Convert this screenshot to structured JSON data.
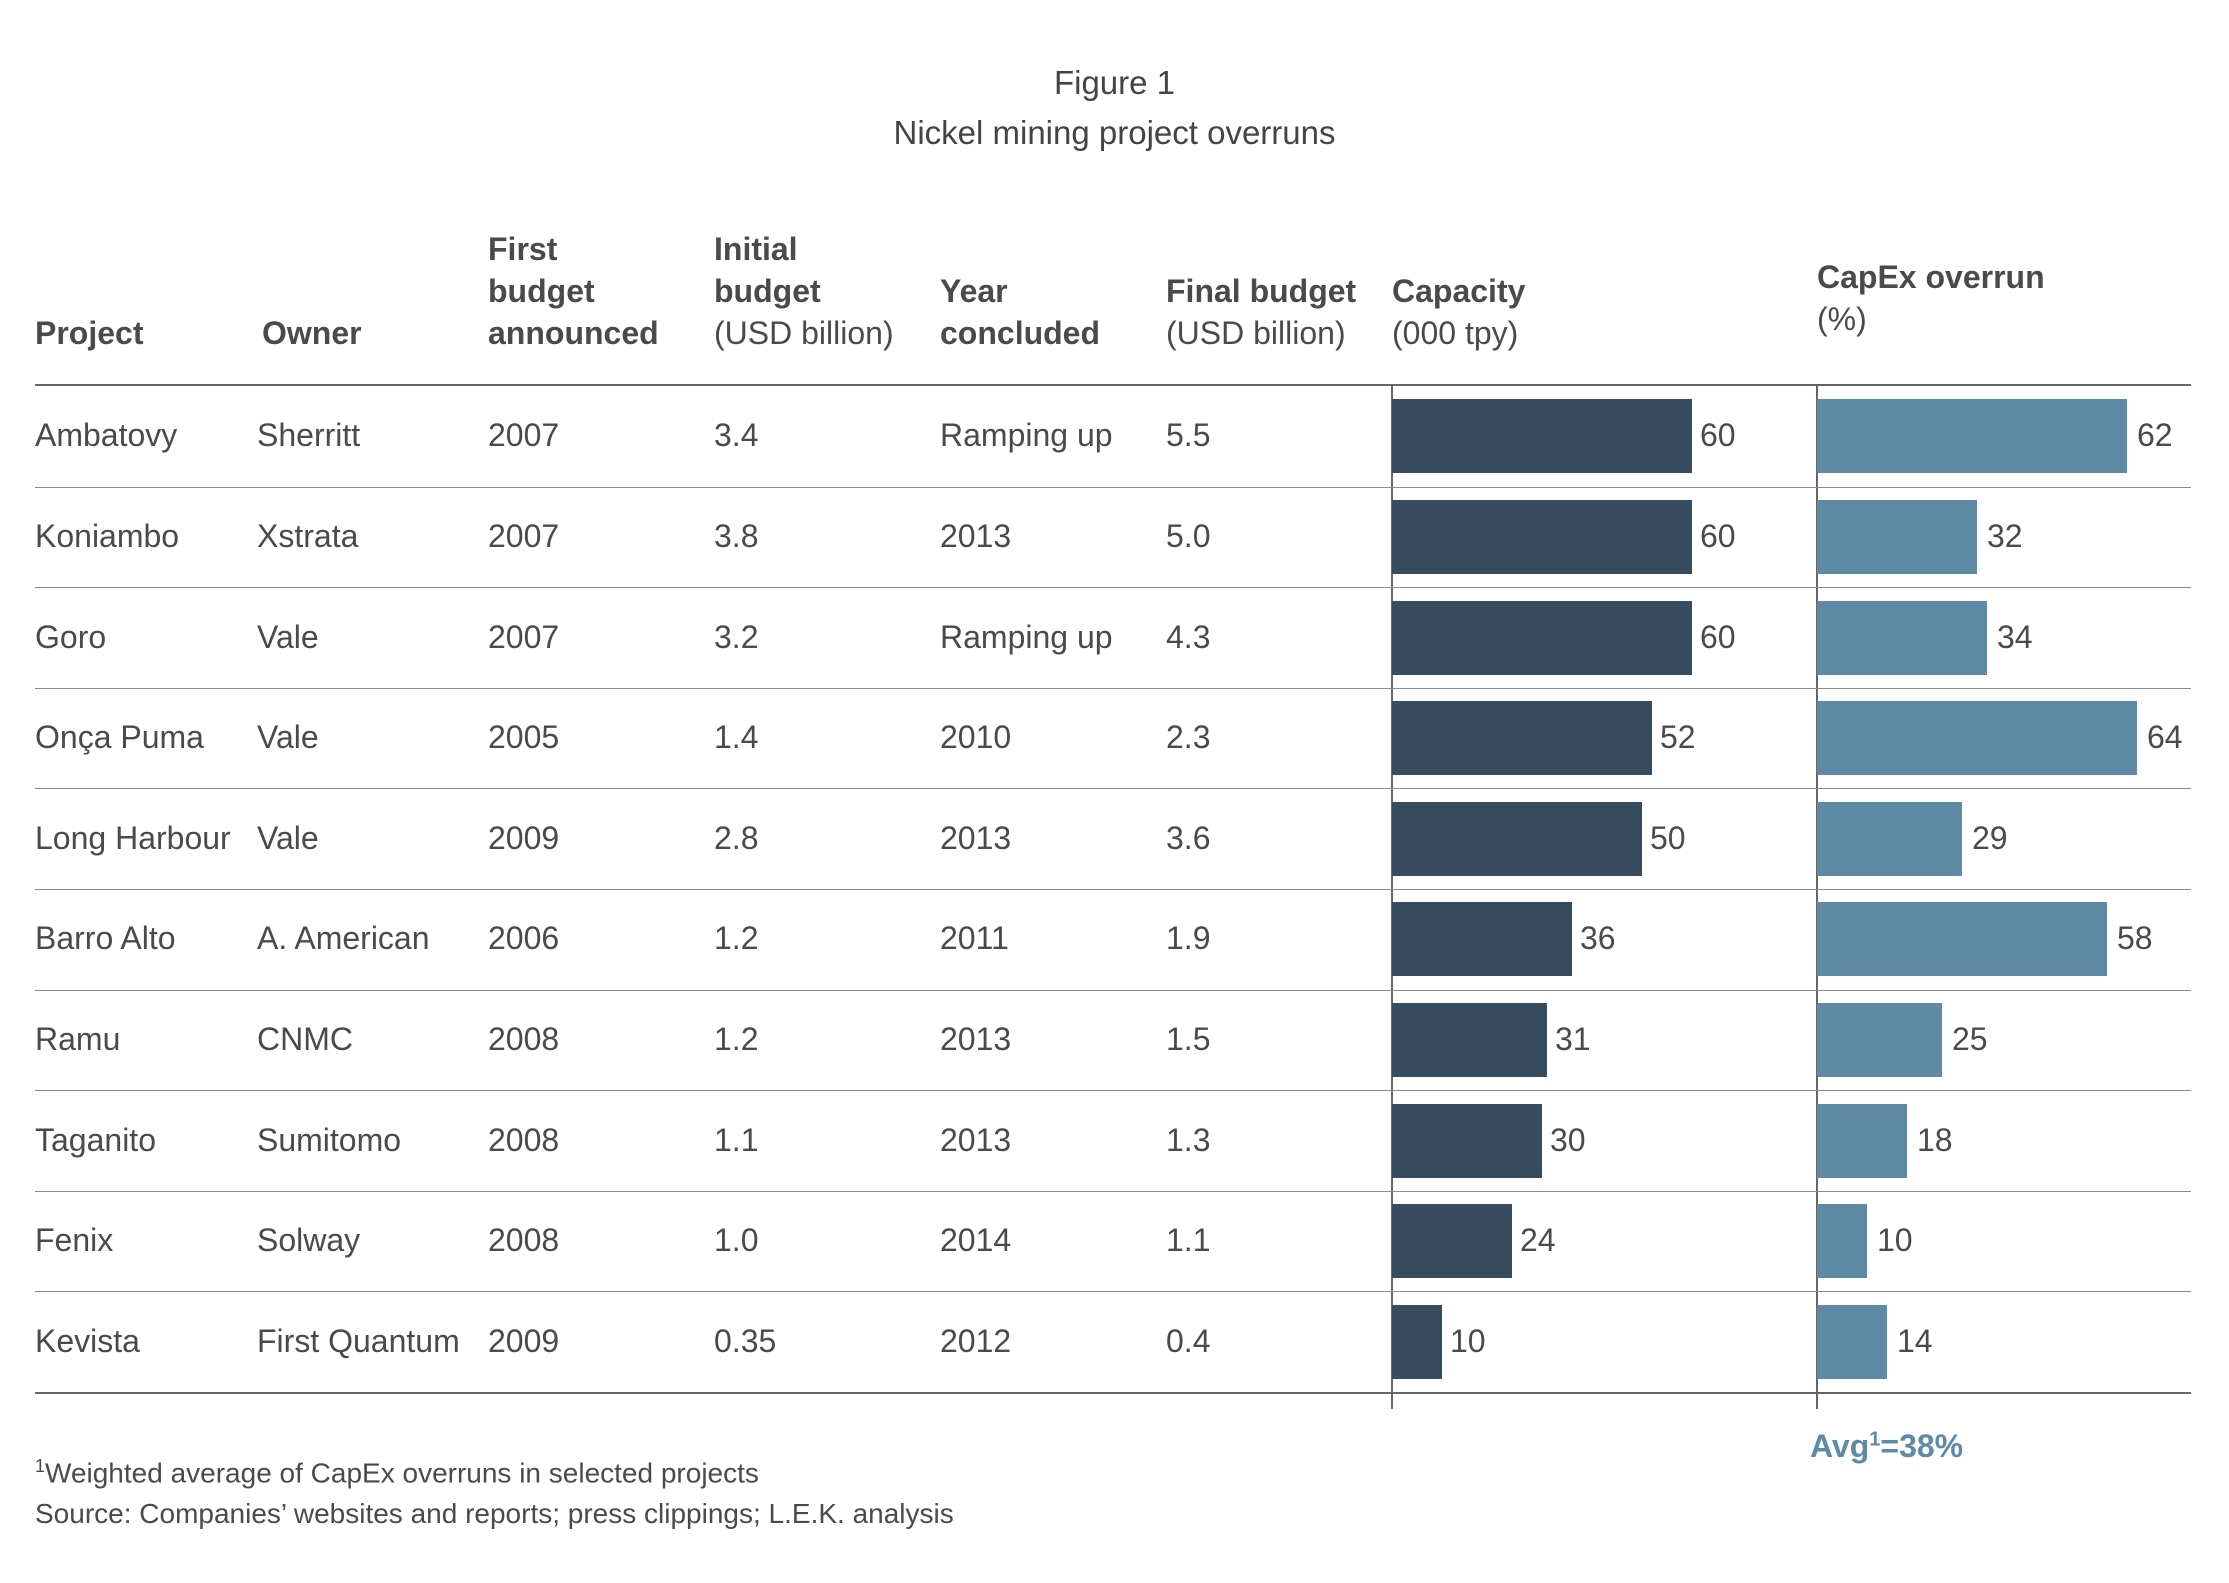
{
  "title": {
    "line1": "Figure 1",
    "line2": "Nickel mining project overruns"
  },
  "headers": {
    "project": "Project",
    "owner": "Owner",
    "first_budget": [
      "First",
      "budget",
      "announced"
    ],
    "initial_budget": {
      "bold": [
        "Initial",
        "budget"
      ],
      "unit": "(USD billion)"
    },
    "year_concluded": [
      "Year",
      "concluded"
    ],
    "final_budget": {
      "bold": "Final budget",
      "unit": "(USD billion)"
    },
    "capacity": {
      "bold": "Capacity",
      "unit": "(000 tpy)"
    },
    "capex_overrun": {
      "bold": "CapEx overrun",
      "unit": "(%)"
    }
  },
  "rows": [
    {
      "project": "Ambatovy",
      "owner": "Sherritt",
      "first_budget": "2007",
      "initial_budget": "3.4",
      "year_concluded": "Ramping up",
      "final_budget": "5.5",
      "capacity": "60",
      "capex_overrun": "62"
    },
    {
      "project": "Koniambo",
      "owner": "Xstrata",
      "first_budget": "2007",
      "initial_budget": "3.8",
      "year_concluded": "2013",
      "final_budget": "5.0",
      "capacity": "60",
      "capex_overrun": "32"
    },
    {
      "project": "Goro",
      "owner": "Vale",
      "first_budget": "2007",
      "initial_budget": "3.2",
      "year_concluded": "Ramping up",
      "final_budget": "4.3",
      "capacity": "60",
      "capex_overrun": "34"
    },
    {
      "project": "Onça Puma",
      "owner": "Vale",
      "first_budget": "2005",
      "initial_budget": "1.4",
      "year_concluded": "2010",
      "final_budget": "2.3",
      "capacity": "52",
      "capex_overrun": "64"
    },
    {
      "project": "Long Harbour",
      "owner": "Vale",
      "first_budget": "2009",
      "initial_budget": "2.8",
      "year_concluded": "2013",
      "final_budget": "3.6",
      "capacity": "50",
      "capex_overrun": "29"
    },
    {
      "project": "Barro Alto",
      "owner": "A. American",
      "first_budget": "2006",
      "initial_budget": "1.2",
      "year_concluded": "2011",
      "final_budget": "1.9",
      "capacity": "36",
      "capex_overrun": "58"
    },
    {
      "project": "Ramu",
      "owner": "CNMC",
      "first_budget": "2008",
      "initial_budget": "1.2",
      "year_concluded": "2013",
      "final_budget": "1.5",
      "capacity": "31",
      "capex_overrun": "25"
    },
    {
      "project": "Taganito",
      "owner": "Sumitomo",
      "first_budget": "2008",
      "initial_budget": "1.1",
      "year_concluded": "2013",
      "final_budget": "1.3",
      "capacity": "30",
      "capex_overrun": "18"
    },
    {
      "project": "Fenix",
      "owner": "Solway",
      "first_budget": "2008",
      "initial_budget": "1.0",
      "year_concluded": "2014",
      "final_budget": "1.1",
      "capacity": "24",
      "capex_overrun": "10"
    },
    {
      "project": "Kevista",
      "owner": "First Quantum",
      "first_budget": "2009",
      "initial_budget": "0.35",
      "year_concluded": "2012",
      "final_budget": "0.4",
      "capacity": "10",
      "capex_overrun": "14"
    }
  ],
  "avg": {
    "prefix": "Avg",
    "sup": "1",
    "suffix": "=38%"
  },
  "footnotes": {
    "note_sup": "1",
    "note": "Weighted average of CapEx overruns in selected projects",
    "source": "Source: Companies’ websites and reports; press clippings; L.E.K. analysis"
  },
  "colors": {
    "capacity_bar": "#374c5e",
    "capex_bar": "#5e8aa5",
    "avg_text": "#5e8aa5"
  },
  "chart_data": [
    {
      "type": "bar",
      "orientation": "horizontal",
      "title": "Capacity",
      "ylabel": "(000 tpy)",
      "categories": [
        "Ambatovy",
        "Koniambo",
        "Goro",
        "Onça Puma",
        "Long Harbour",
        "Barro Alto",
        "Ramu",
        "Taganito",
        "Fenix",
        "Kevista"
      ],
      "values": [
        60,
        60,
        60,
        52,
        50,
        36,
        31,
        30,
        24,
        10
      ],
      "grid": false
    },
    {
      "type": "bar",
      "orientation": "horizontal",
      "title": "CapEx overrun",
      "ylabel": "(%)",
      "categories": [
        "Ambatovy",
        "Koniambo",
        "Goro",
        "Onça Puma",
        "Long Harbour",
        "Barro Alto",
        "Ramu",
        "Taganito",
        "Fenix",
        "Kevista"
      ],
      "values": [
        62,
        32,
        34,
        64,
        29,
        58,
        25,
        18,
        10,
        14
      ],
      "grid": false
    }
  ]
}
